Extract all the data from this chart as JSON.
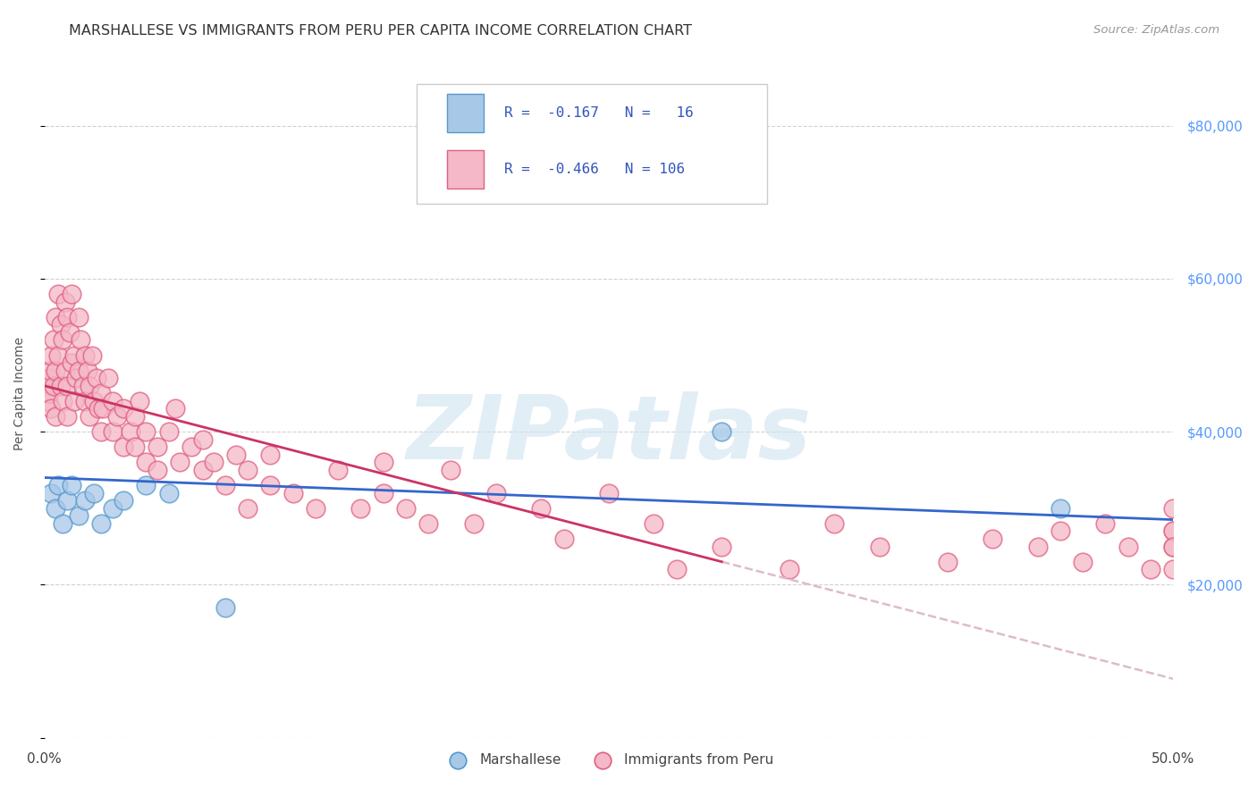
{
  "title": "MARSHALLESE VS IMMIGRANTS FROM PERU PER CAPITA INCOME CORRELATION CHART",
  "source": "Source: ZipAtlas.com",
  "ylabel": "Per Capita Income",
  "xmin": 0.0,
  "xmax": 50.0,
  "ymin": 0,
  "ymax": 90000,
  "yticks": [
    0,
    20000,
    40000,
    60000,
    80000
  ],
  "xticks": [
    0.0,
    10.0,
    20.0,
    30.0,
    40.0,
    50.0
  ],
  "grid_color": "#cccccc",
  "background_color": "#ffffff",
  "blue_color": "#a8c8e8",
  "blue_edge": "#5599cc",
  "pink_color": "#f4b8c8",
  "pink_edge": "#e06080",
  "blue_line_color": "#3366cc",
  "pink_line_color": "#cc3366",
  "legend_label1": "Marshallese",
  "legend_label2": "Immigrants from Peru",
  "watermark": "ZIPatlas",
  "blue_line_x0": 0.0,
  "blue_line_y0": 34000,
  "blue_line_x1": 50.0,
  "blue_line_y1": 28500,
  "pink_line_x0": 0.0,
  "pink_line_y0": 46000,
  "pink_line_x1": 30.0,
  "pink_line_y1": 23000,
  "pink_dashed_x0": 30.0,
  "pink_dashed_y0": 23000,
  "pink_dashed_x1": 50.0,
  "pink_dashed_y1": 7700,
  "blue_scatter_x": [
    0.3,
    0.5,
    0.6,
    0.8,
    1.0,
    1.2,
    1.5,
    1.8,
    2.2,
    2.5,
    3.0,
    3.5,
    4.5,
    5.5,
    8.0,
    30.0,
    45.0
  ],
  "blue_scatter_y": [
    32000,
    30000,
    33000,
    28000,
    31000,
    33000,
    29000,
    31000,
    32000,
    28000,
    30000,
    31000,
    33000,
    32000,
    17000,
    40000,
    30000
  ],
  "pink_scatter_x": [
    0.1,
    0.15,
    0.2,
    0.2,
    0.25,
    0.3,
    0.3,
    0.4,
    0.4,
    0.5,
    0.5,
    0.5,
    0.6,
    0.6,
    0.7,
    0.7,
    0.8,
    0.8,
    0.9,
    0.9,
    1.0,
    1.0,
    1.0,
    1.1,
    1.2,
    1.2,
    1.3,
    1.3,
    1.4,
    1.5,
    1.5,
    1.6,
    1.7,
    1.8,
    1.8,
    1.9,
    2.0,
    2.0,
    2.1,
    2.2,
    2.3,
    2.4,
    2.5,
    2.5,
    2.6,
    2.8,
    3.0,
    3.0,
    3.2,
    3.5,
    3.5,
    3.8,
    4.0,
    4.0,
    4.2,
    4.5,
    4.5,
    5.0,
    5.0,
    5.5,
    5.8,
    6.0,
    6.5,
    7.0,
    7.0,
    7.5,
    8.0,
    8.5,
    9.0,
    9.0,
    10.0,
    10.0,
    11.0,
    12.0,
    13.0,
    14.0,
    15.0,
    15.0,
    16.0,
    17.0,
    18.0,
    19.0,
    20.0,
    22.0,
    23.0,
    25.0,
    27.0,
    28.0,
    30.0,
    33.0,
    35.0,
    37.0,
    40.0,
    42.0,
    44.0,
    45.0,
    46.0,
    47.0,
    48.0,
    49.0,
    50.0,
    50.0,
    50.0,
    50.0,
    50.0,
    50.0
  ],
  "pink_scatter_y": [
    46000,
    44000,
    47000,
    45000,
    48000,
    50000,
    43000,
    52000,
    46000,
    55000,
    48000,
    42000,
    58000,
    50000,
    54000,
    46000,
    52000,
    44000,
    57000,
    48000,
    55000,
    46000,
    42000,
    53000,
    58000,
    49000,
    50000,
    44000,
    47000,
    55000,
    48000,
    52000,
    46000,
    50000,
    44000,
    48000,
    46000,
    42000,
    50000,
    44000,
    47000,
    43000,
    45000,
    40000,
    43000,
    47000,
    44000,
    40000,
    42000,
    38000,
    43000,
    40000,
    38000,
    42000,
    44000,
    36000,
    40000,
    38000,
    35000,
    40000,
    43000,
    36000,
    38000,
    35000,
    39000,
    36000,
    33000,
    37000,
    35000,
    30000,
    33000,
    37000,
    32000,
    30000,
    35000,
    30000,
    36000,
    32000,
    30000,
    28000,
    35000,
    28000,
    32000,
    30000,
    26000,
    32000,
    28000,
    22000,
    25000,
    22000,
    28000,
    25000,
    23000,
    26000,
    25000,
    27000,
    23000,
    28000,
    25000,
    22000,
    30000,
    27000,
    25000,
    22000,
    27000,
    25000
  ]
}
